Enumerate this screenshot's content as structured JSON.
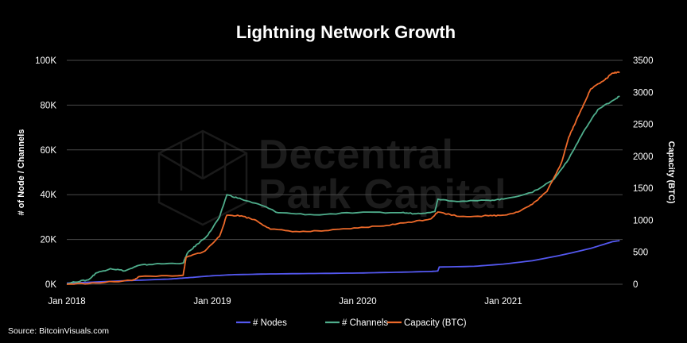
{
  "watermark": {
    "line1": "Decentral",
    "line2": "Park Capital"
  },
  "source_text": "Source: BitcoinVisuals.com",
  "colors": {
    "background": "#000000",
    "nodes": "#5458f0",
    "channels": "#4fae8c",
    "capacity": "#ee6a2a",
    "grid": "#4a4a4a"
  },
  "chart_data": {
    "type": "line",
    "title": "Lightning Network Growth",
    "xlabel": "",
    "ylabel_left": "# of Node / Channels",
    "ylabel_right": "Capacity (BTC)",
    "xlim": [
      2018.0,
      2021.82
    ],
    "ylim_left": [
      0,
      100000
    ],
    "ylim_right": [
      0,
      3500
    ],
    "x_ticks": [
      {
        "value": 2018.0,
        "label": "Jan 2018"
      },
      {
        "value": 2019.0,
        "label": "Jan 2019"
      },
      {
        "value": 2020.0,
        "label": "Jan 2020"
      },
      {
        "value": 2021.0,
        "label": "Jan 2021"
      }
    ],
    "y_left_ticks": [
      {
        "value": 0,
        "label": "0K"
      },
      {
        "value": 20000,
        "label": "20K"
      },
      {
        "value": 40000,
        "label": "40K"
      },
      {
        "value": 60000,
        "label": "60K"
      },
      {
        "value": 80000,
        "label": "80K"
      },
      {
        "value": 100000,
        "label": "100K"
      }
    ],
    "y_right_ticks": [
      {
        "value": 0,
        "label": "0"
      },
      {
        "value": 500,
        "label": "500"
      },
      {
        "value": 1000,
        "label": "1000"
      },
      {
        "value": 1500,
        "label": "1500"
      },
      {
        "value": 2000,
        "label": "2000"
      },
      {
        "value": 2500,
        "label": "2500"
      },
      {
        "value": 3000,
        "label": "3000"
      },
      {
        "value": 3500,
        "label": "3500"
      }
    ],
    "legend_position": "bottom-center",
    "series": [
      {
        "name": "# Nodes",
        "axis": "left",
        "points": [
          [
            2018.0,
            500
          ],
          [
            2018.2,
            1000
          ],
          [
            2018.45,
            1700
          ],
          [
            2018.7,
            2300
          ],
          [
            2018.85,
            3000
          ],
          [
            2019.0,
            3800
          ],
          [
            2019.15,
            4300
          ],
          [
            2019.4,
            4600
          ],
          [
            2019.7,
            4800
          ],
          [
            2020.0,
            5000
          ],
          [
            2020.3,
            5400
          ],
          [
            2020.5,
            5700
          ],
          [
            2020.55,
            5900
          ],
          [
            2020.56,
            7700
          ],
          [
            2020.8,
            8000
          ],
          [
            2021.0,
            9000
          ],
          [
            2021.2,
            10500
          ],
          [
            2021.4,
            13000
          ],
          [
            2021.6,
            16000
          ],
          [
            2021.75,
            19000
          ],
          [
            2021.8,
            19500
          ]
        ]
      },
      {
        "name": "# Channels",
        "axis": "left",
        "points": [
          [
            2018.0,
            200
          ],
          [
            2018.05,
            1000
          ],
          [
            2018.15,
            2000
          ],
          [
            2018.2,
            5000
          ],
          [
            2018.3,
            7000
          ],
          [
            2018.4,
            6000
          ],
          [
            2018.5,
            8500
          ],
          [
            2018.6,
            9000
          ],
          [
            2018.8,
            9500
          ],
          [
            2018.83,
            14000
          ],
          [
            2018.9,
            18000
          ],
          [
            2018.97,
            22000
          ],
          [
            2019.05,
            30000
          ],
          [
            2019.1,
            40000
          ],
          [
            2019.2,
            38000
          ],
          [
            2019.35,
            35000
          ],
          [
            2019.45,
            32000
          ],
          [
            2019.7,
            31000
          ],
          [
            2020.0,
            32000
          ],
          [
            2020.3,
            32000
          ],
          [
            2020.4,
            31500
          ],
          [
            2020.53,
            32500
          ],
          [
            2020.55,
            38000
          ],
          [
            2020.7,
            37000
          ],
          [
            2020.9,
            37500
          ],
          [
            2021.0,
            38000
          ],
          [
            2021.2,
            41000
          ],
          [
            2021.35,
            47000
          ],
          [
            2021.45,
            56000
          ],
          [
            2021.55,
            68000
          ],
          [
            2021.65,
            78000
          ],
          [
            2021.75,
            82000
          ],
          [
            2021.8,
            84000
          ]
        ]
      },
      {
        "name": "Capacity (BTC)",
        "axis": "right",
        "points": [
          [
            2018.0,
            0
          ],
          [
            2018.2,
            20
          ],
          [
            2018.45,
            60
          ],
          [
            2018.5,
            120
          ],
          [
            2018.8,
            140
          ],
          [
            2018.82,
            420
          ],
          [
            2018.95,
            520
          ],
          [
            2019.05,
            750
          ],
          [
            2019.1,
            1080
          ],
          [
            2019.2,
            1070
          ],
          [
            2019.3,
            1000
          ],
          [
            2019.4,
            860
          ],
          [
            2019.6,
            820
          ],
          [
            2019.8,
            840
          ],
          [
            2020.0,
            880
          ],
          [
            2020.2,
            920
          ],
          [
            2020.35,
            970
          ],
          [
            2020.5,
            1020
          ],
          [
            2020.55,
            1130
          ],
          [
            2020.7,
            1060
          ],
          [
            2020.9,
            1070
          ],
          [
            2021.0,
            1080
          ],
          [
            2021.1,
            1130
          ],
          [
            2021.2,
            1250
          ],
          [
            2021.3,
            1450
          ],
          [
            2021.4,
            1900
          ],
          [
            2021.45,
            2300
          ],
          [
            2021.5,
            2550
          ],
          [
            2021.55,
            2800
          ],
          [
            2021.6,
            3050
          ],
          [
            2021.7,
            3200
          ],
          [
            2021.75,
            3300
          ],
          [
            2021.8,
            3320
          ]
        ]
      }
    ]
  }
}
